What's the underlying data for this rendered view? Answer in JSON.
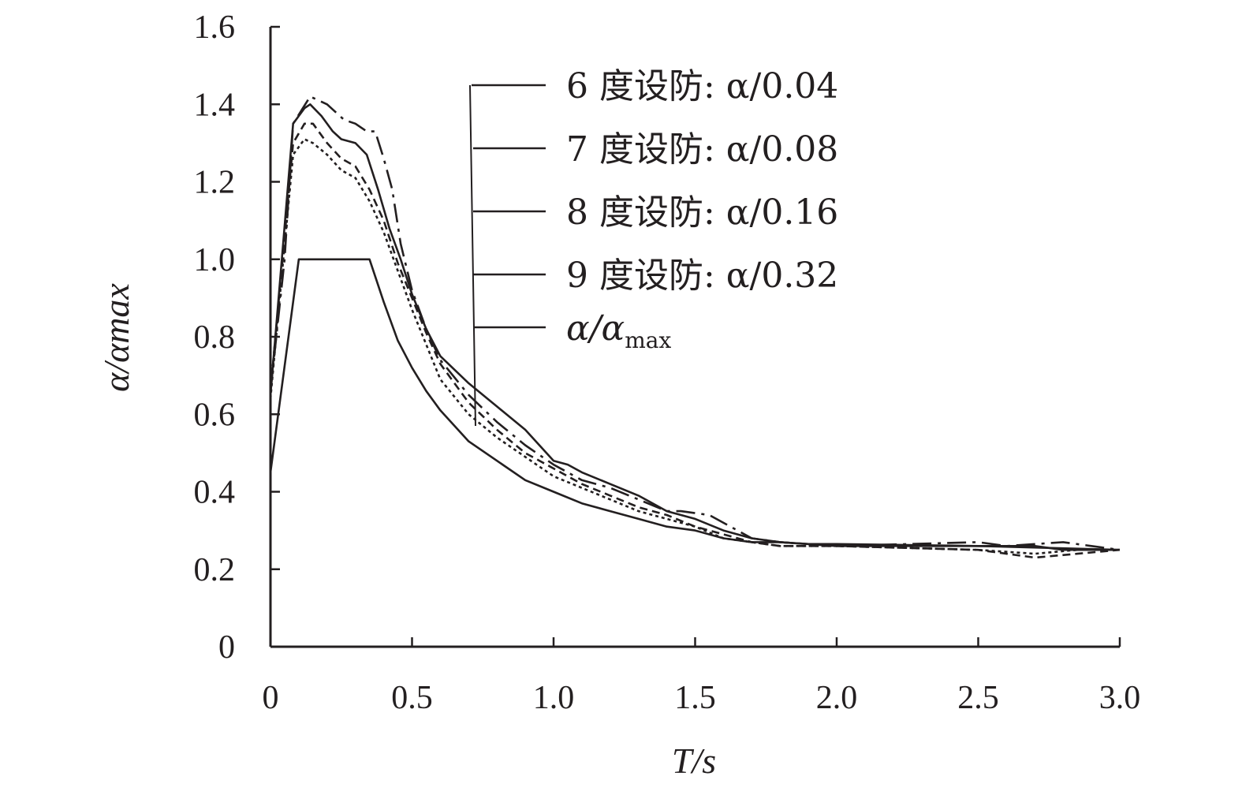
{
  "chart_data": {
    "type": "line",
    "xlabel": "T/s",
    "ylabel": "α/αmax",
    "xlim": [
      0,
      3.0
    ],
    "ylim": [
      0,
      1.6
    ],
    "x_ticks": [
      "0",
      "0.5",
      "1.0",
      "1.5",
      "2.0",
      "2.5",
      "3.0"
    ],
    "y_ticks": [
      "0",
      "0.2",
      "0.4",
      "0.6",
      "0.8",
      "1.0",
      "1.2",
      "1.4",
      "1.6"
    ],
    "grid": false,
    "legend_position": "top-right",
    "series": [
      {
        "name": "6 度设防: α/0.04",
        "dash": "24 8 4 8",
        "x": [
          0,
          0.05,
          0.08,
          0.14,
          0.2,
          0.26,
          0.3,
          0.34,
          0.37,
          0.4,
          0.43,
          0.46,
          0.5,
          0.55,
          0.6,
          0.7,
          0.8,
          0.9,
          1.0,
          1.1,
          1.2,
          1.3,
          1.4,
          1.45,
          1.55,
          1.7,
          1.8,
          2.0,
          2.5,
          2.6,
          2.8,
          2.9,
          3.0
        ],
        "y": [
          0.66,
          1.0,
          1.35,
          1.42,
          1.4,
          1.36,
          1.35,
          1.33,
          1.33,
          1.26,
          1.18,
          1.04,
          0.92,
          0.82,
          0.74,
          0.65,
          0.58,
          0.52,
          0.47,
          0.43,
          0.41,
          0.38,
          0.35,
          0.35,
          0.34,
          0.28,
          0.27,
          0.26,
          0.27,
          0.26,
          0.27,
          0.26,
          0.25
        ]
      },
      {
        "name": "7 度设防: α/0.08",
        "dash": "none",
        "x": [
          0,
          0.04,
          0.08,
          0.12,
          0.14,
          0.18,
          0.22,
          0.25,
          0.3,
          0.34,
          0.38,
          0.42,
          0.46,
          0.5,
          0.55,
          0.6,
          0.7,
          0.8,
          0.9,
          0.95,
          1.0,
          1.05,
          1.1,
          1.2,
          1.3,
          1.4,
          1.5,
          1.6,
          1.7,
          1.8,
          2.0,
          2.5,
          2.7,
          2.8,
          3.0
        ],
        "y": [
          0.65,
          1.0,
          1.35,
          1.39,
          1.4,
          1.37,
          1.33,
          1.31,
          1.3,
          1.27,
          1.18,
          1.08,
          1.0,
          0.91,
          0.82,
          0.75,
          0.68,
          0.62,
          0.56,
          0.52,
          0.48,
          0.47,
          0.45,
          0.42,
          0.39,
          0.35,
          0.33,
          0.3,
          0.28,
          0.27,
          0.26,
          0.26,
          0.26,
          0.25,
          0.25
        ]
      },
      {
        "name": "8 度设防: α/0.16",
        "dash": "10 6",
        "x": [
          0,
          0.04,
          0.08,
          0.12,
          0.15,
          0.2,
          0.25,
          0.3,
          0.35,
          0.4,
          0.45,
          0.5,
          0.55,
          0.6,
          0.7,
          0.8,
          0.9,
          1.0,
          1.1,
          1.2,
          1.3,
          1.4,
          1.5,
          1.6,
          1.7,
          1.8,
          2.0,
          2.5,
          2.7,
          2.85,
          3.0
        ],
        "y": [
          0.66,
          0.98,
          1.3,
          1.35,
          1.35,
          1.3,
          1.26,
          1.24,
          1.18,
          1.1,
          0.99,
          0.9,
          0.81,
          0.73,
          0.63,
          0.56,
          0.5,
          0.46,
          0.42,
          0.39,
          0.36,
          0.34,
          0.31,
          0.29,
          0.27,
          0.26,
          0.26,
          0.25,
          0.23,
          0.24,
          0.25
        ]
      },
      {
        "name": "9 度设防: α/0.32",
        "dash": "4 4",
        "x": [
          0,
          0.04,
          0.08,
          0.12,
          0.15,
          0.2,
          0.25,
          0.3,
          0.35,
          0.4,
          0.45,
          0.5,
          0.55,
          0.6,
          0.7,
          0.8,
          0.9,
          1.0,
          1.1,
          1.2,
          1.3,
          1.4,
          1.5,
          1.6,
          1.7,
          1.8,
          2.0,
          2.5,
          2.7,
          2.85,
          3.0
        ],
        "y": [
          0.64,
          0.96,
          1.27,
          1.31,
          1.3,
          1.27,
          1.23,
          1.21,
          1.15,
          1.07,
          0.97,
          0.87,
          0.78,
          0.69,
          0.6,
          0.54,
          0.49,
          0.44,
          0.41,
          0.38,
          0.35,
          0.33,
          0.31,
          0.28,
          0.27,
          0.26,
          0.26,
          0.25,
          0.24,
          0.25,
          0.25
        ]
      },
      {
        "name": "α/αmax",
        "dash": "none",
        "x": [
          0,
          0.1,
          0.35,
          0.4,
          0.45,
          0.5,
          0.55,
          0.6,
          0.7,
          0.8,
          0.9,
          1.0,
          1.1,
          1.2,
          1.3,
          1.4,
          1.5,
          1.6,
          1.7,
          1.75,
          1.8,
          1.9,
          2.0,
          2.5,
          3.0
        ],
        "y": [
          0.45,
          1.0,
          1.0,
          0.89,
          0.79,
          0.72,
          0.66,
          0.61,
          0.53,
          0.48,
          0.43,
          0.4,
          0.37,
          0.35,
          0.33,
          0.31,
          0.3,
          0.28,
          0.27,
          0.27,
          0.27,
          0.265,
          0.265,
          0.26,
          0.25
        ]
      }
    ],
    "legend": [
      {
        "label": "6 度设防: α/0.04"
      },
      {
        "label": "7 度设防: α/0.08"
      },
      {
        "label": "8 度设防: α/0.16"
      },
      {
        "label": "9 度设防: α/0.32"
      },
      {
        "label": "α/αmax"
      }
    ]
  }
}
